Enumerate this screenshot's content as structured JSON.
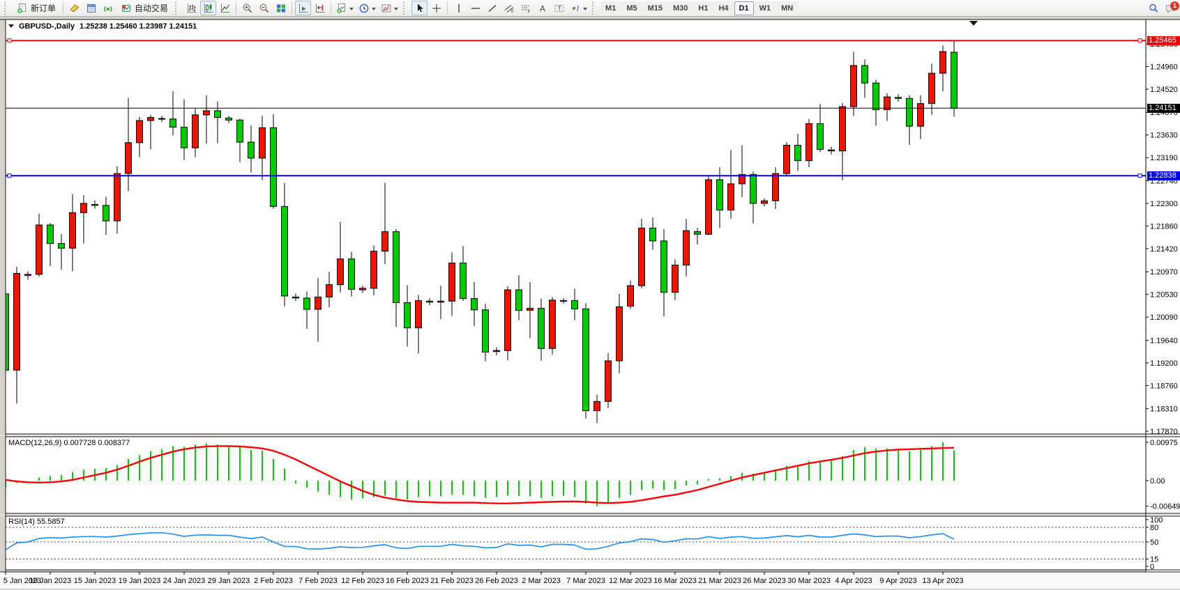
{
  "toolbar": {
    "new_order_label": "新订单",
    "autotrading_label": "自动交易",
    "timeframes": [
      "M1",
      "M5",
      "M15",
      "M30",
      "H1",
      "H4",
      "D1",
      "W1",
      "MN"
    ],
    "active_timeframe": "D1",
    "notification_count": "1"
  },
  "chart": {
    "title": "GBPUSD-,Daily",
    "ohlc_text": "1.25238 1.25460 1.23987 1.24151",
    "macd_label": "MACD(12,26,9) 0.007728 0.008377",
    "rsi_label": "RSI(14) 55.5857",
    "badges": {
      "resistance": "1.25465",
      "current": "1.24151",
      "support": "1.22838"
    }
  },
  "chart_data": {
    "type": "candlestick",
    "symbol": "GBPUSD-",
    "timeframe": "Daily",
    "title_ohlc": {
      "open": 1.25238,
      "high": 1.2546,
      "low": 1.23987,
      "close": 1.24151
    },
    "price_range_visible": [
      1.17818,
      1.25874
    ],
    "grid": false,
    "colors": {
      "bull_body": "#ee1500",
      "bear_body": "#00cc00",
      "outline": "#000000",
      "macd_histogram": "#00cc00",
      "macd_signal": "#ff0000",
      "rsi_line": "#2492f0",
      "resistance_line": "#ff0000",
      "support_line": "#0000ff",
      "current_price_line": "#000000"
    },
    "hlines": [
      {
        "name": "resistance",
        "price": 1.25465,
        "color": "#ff0000",
        "label": "1.25465"
      },
      {
        "name": "support",
        "price": 1.22838,
        "color": "#0000ff",
        "label": "1.22838"
      }
    ],
    "current_price": 1.24151,
    "price_axis_labels": [
      "1.25400",
      "1.24960",
      "1.24520",
      "1.24070",
      "1.23630",
      "1.23190",
      "1.22740",
      "1.22300",
      "1.21860",
      "1.21420",
      "1.20970",
      "1.20530",
      "1.20090",
      "1.19640",
      "1.19200",
      "1.18760",
      "1.18310",
      "1.17870"
    ],
    "x_labels": [
      "5 Jan 2023",
      "10 Jan 2023",
      "15 Jan 2023",
      "19 Jan 2023",
      "24 Jan 2023",
      "29 Jan 2023",
      "2 Feb 2023",
      "7 Feb 2023",
      "12 Feb 2023",
      "16 Feb 2023",
      "21 Feb 2023",
      "26 Feb 2023",
      "2 Mar 2023",
      "7 Mar 2023",
      "12 Mar 2023",
      "16 Mar 2023",
      "21 Mar 2023",
      "26 Mar 2023",
      "30 Mar 2023",
      "4 Apr 2023",
      "9 Apr 2023",
      "13 Apr 2023"
    ],
    "candles_per_x_label": 4,
    "candle_fields": [
      "date",
      "open",
      "high",
      "low",
      "close"
    ],
    "candles": [
      [
        "5 Jan",
        1.2054,
        1.207,
        1.19,
        1.1906
      ],
      [
        "6 Jan",
        1.1906,
        1.2107,
        1.1841,
        1.2094
      ],
      [
        "8 Jan",
        1.209,
        1.2098,
        1.2082,
        1.2092
      ],
      [
        "9 Jan",
        1.2092,
        1.221,
        1.2088,
        1.2188
      ],
      [
        "10 Jan",
        1.2188,
        1.2192,
        1.2108,
        1.2152
      ],
      [
        "11 Jan",
        1.2152,
        1.217,
        1.2101,
        1.2143
      ],
      [
        "12 Jan",
        1.2143,
        1.2248,
        1.2098,
        1.2212
      ],
      [
        "13 Jan",
        1.2212,
        1.2246,
        1.2152,
        1.223
      ],
      [
        "15 Jan",
        1.2228,
        1.2236,
        1.222,
        1.2226
      ],
      [
        "16 Jan",
        1.2226,
        1.2243,
        1.2169,
        1.2196
      ],
      [
        "17 Jan",
        1.2196,
        1.2302,
        1.2171,
        1.2288
      ],
      [
        "18 Jan",
        1.2288,
        1.2435,
        1.2254,
        1.2348
      ],
      [
        "19 Jan",
        1.2348,
        1.2398,
        1.232,
        1.2391
      ],
      [
        "20 Jan",
        1.2391,
        1.2402,
        1.2335,
        1.2397
      ],
      [
        "22 Jan",
        1.2395,
        1.24,
        1.2388,
        1.2394
      ],
      [
        "23 Jan",
        1.2394,
        1.2448,
        1.2362,
        1.2378
      ],
      [
        "24 Jan",
        1.2378,
        1.2432,
        1.2314,
        1.2338
      ],
      [
        "25 Jan",
        1.2338,
        1.2415,
        1.232,
        1.2402
      ],
      [
        "26 Jan",
        1.2402,
        1.244,
        1.2346,
        1.241
      ],
      [
        "27 Jan",
        1.241,
        1.2428,
        1.2347,
        1.2397
      ],
      [
        "29 Jan",
        1.2396,
        1.24,
        1.2386,
        1.2392
      ],
      [
        "30 Jan",
        1.2392,
        1.2395,
        1.231,
        1.2349
      ],
      [
        "31 Jan",
        1.2349,
        1.2382,
        1.229,
        1.2318
      ],
      [
        "1 Feb",
        1.2318,
        1.24,
        1.2275,
        1.2377
      ],
      [
        "2 Feb",
        1.2377,
        1.2403,
        1.222,
        1.2224
      ],
      [
        "3 Feb",
        1.2224,
        1.227,
        1.203,
        1.205
      ],
      [
        "5 Feb",
        1.2048,
        1.2055,
        1.204,
        1.2046
      ],
      [
        "6 Feb",
        1.2046,
        1.2059,
        1.1986,
        1.2024
      ],
      [
        "7 Feb",
        1.2024,
        1.2085,
        1.1961,
        1.2048
      ],
      [
        "8 Feb",
        1.2048,
        1.2097,
        1.2028,
        1.2072
      ],
      [
        "9 Feb",
        1.2072,
        1.2194,
        1.2057,
        1.2122
      ],
      [
        "10 Feb",
        1.2122,
        1.2136,
        1.2049,
        1.2063
      ],
      [
        "12 Feb",
        1.2062,
        1.207,
        1.2056,
        1.2065
      ],
      [
        "13 Feb",
        1.2065,
        1.2148,
        1.2051,
        1.2137
      ],
      [
        "14 Feb",
        1.2137,
        1.227,
        1.2112,
        1.2175
      ],
      [
        "15 Feb",
        1.2175,
        1.218,
        1.199,
        1.2037
      ],
      [
        "16 Feb",
        1.2037,
        1.2071,
        1.1952,
        1.1988
      ],
      [
        "17 Feb",
        1.1988,
        1.2052,
        1.1938,
        1.2041
      ],
      [
        "19 Feb",
        1.204,
        1.2046,
        1.2032,
        1.2038
      ],
      [
        "20 Feb",
        1.2038,
        1.207,
        1.2005,
        1.204
      ],
      [
        "21 Feb",
        1.204,
        1.2135,
        1.2011,
        1.2114
      ],
      [
        "22 Feb",
        1.2114,
        1.2147,
        1.204,
        1.2045
      ],
      [
        "23 Feb",
        1.2045,
        1.2077,
        1.1992,
        1.2023
      ],
      [
        "24 Feb",
        1.2023,
        1.2035,
        1.1923,
        1.1941
      ],
      [
        "26 Feb",
        1.1942,
        1.195,
        1.1935,
        1.1944
      ],
      [
        "27 Feb",
        1.1944,
        1.2069,
        1.1925,
        1.2062
      ],
      [
        "28 Feb",
        1.2062,
        1.209,
        1.2003,
        1.2022
      ],
      [
        "1 Mar",
        1.2022,
        1.2077,
        1.1968,
        1.2026
      ],
      [
        "2 Mar",
        1.2026,
        1.2045,
        1.1924,
        1.1948
      ],
      [
        "3 Mar",
        1.1948,
        1.2048,
        1.1936,
        1.2042
      ],
      [
        "5 Mar",
        1.204,
        1.2046,
        1.2035,
        1.2041
      ],
      [
        "6 Mar",
        1.2041,
        1.2064,
        1.2003,
        1.2025
      ],
      [
        "7 Mar",
        1.2025,
        1.2036,
        1.1812,
        1.1827
      ],
      [
        "8 Mar",
        1.1827,
        1.1858,
        1.1803,
        1.1845
      ],
      [
        "9 Mar",
        1.1845,
        1.1939,
        1.1832,
        1.1924
      ],
      [
        "10 Mar",
        1.1924,
        1.2054,
        1.19,
        1.2029
      ],
      [
        "12 Mar",
        1.203,
        1.208,
        1.2025,
        1.207
      ],
      [
        "13 Mar",
        1.207,
        1.22,
        1.2065,
        1.2182
      ],
      [
        "14 Mar",
        1.2182,
        1.2203,
        1.214,
        1.2157
      ],
      [
        "15 Mar",
        1.2157,
        1.218,
        1.201,
        1.2057
      ],
      [
        "16 Mar",
        1.2057,
        1.2121,
        1.2042,
        1.211
      ],
      [
        "17 Mar",
        1.211,
        1.22,
        1.2088,
        1.2177
      ],
      [
        "19 Mar",
        1.2175,
        1.2182,
        1.215,
        1.217
      ],
      [
        "20 Mar",
        1.217,
        1.2284,
        1.2168,
        1.2276
      ],
      [
        "21 Mar",
        1.2276,
        1.23,
        1.2182,
        1.2217
      ],
      [
        "22 Mar",
        1.2217,
        1.2334,
        1.22,
        1.2268
      ],
      [
        "23 Mar",
        1.2268,
        1.2343,
        1.2242,
        1.2286
      ],
      [
        "24 Mar",
        1.2286,
        1.2292,
        1.2191,
        1.223
      ],
      [
        "26 Mar",
        1.223,
        1.224,
        1.2224,
        1.2235
      ],
      [
        "27 Mar",
        1.2235,
        1.23,
        1.2219,
        1.2288
      ],
      [
        "28 Mar",
        1.2288,
        1.2349,
        1.2284,
        1.2343
      ],
      [
        "29 Mar",
        1.2343,
        1.2365,
        1.2293,
        1.2313
      ],
      [
        "30 Mar",
        1.2313,
        1.2394,
        1.23,
        1.2385
      ],
      [
        "31 Mar",
        1.2385,
        1.2423,
        1.233,
        1.2335
      ],
      [
        "2 Apr",
        1.2334,
        1.234,
        1.2325,
        1.2332
      ],
      [
        "3 Apr",
        1.2332,
        1.2425,
        1.2275,
        1.2418
      ],
      [
        "4 Apr",
        1.2418,
        1.2525,
        1.24,
        1.2498
      ],
      [
        "5 Apr",
        1.2498,
        1.251,
        1.2435,
        1.2464
      ],
      [
        "6 Apr",
        1.2464,
        1.247,
        1.2381,
        1.2412
      ],
      [
        "7 Apr",
        1.2412,
        1.2444,
        1.239,
        1.2437
      ],
      [
        "9 Apr",
        1.2436,
        1.2442,
        1.2428,
        1.2434
      ],
      [
        "10 Apr",
        1.2434,
        1.244,
        1.2344,
        1.238
      ],
      [
        "11 Apr",
        1.238,
        1.244,
        1.2355,
        1.2424
      ],
      [
        "12 Apr",
        1.2424,
        1.2502,
        1.2402,
        1.2483
      ],
      [
        "13 Apr",
        1.2483,
        1.2537,
        1.2448,
        1.2525
      ],
      [
        "14 Apr",
        1.25238,
        1.2546,
        1.23987,
        1.24151
      ]
    ],
    "macd": {
      "label": "MACD(12,26,9)",
      "params": [
        12,
        26,
        9
      ],
      "value": 0.007728,
      "signal_value": 0.008377,
      "axis_labels": [
        "0.00975",
        "0.00",
        "-0.006494"
      ],
      "axis_values": [
        0.00975,
        0.0,
        -0.006494
      ],
      "histogram": [
        -0.0019,
        -0.0006,
        0.0,
        0.0008,
        0.0012,
        0.0014,
        0.0022,
        0.0028,
        0.003,
        0.0032,
        0.004,
        0.0055,
        0.0065,
        0.0075,
        0.008,
        0.0088,
        0.0086,
        0.0092,
        0.0095,
        0.0092,
        0.0088,
        0.0087,
        0.0078,
        0.0076,
        0.0055,
        0.003,
        -0.0008,
        -0.0018,
        -0.0028,
        -0.0036,
        -0.0042,
        -0.0048,
        -0.0045,
        -0.0042,
        -0.0038,
        -0.0045,
        -0.0048,
        -0.0042,
        -0.004,
        -0.004,
        -0.0036,
        -0.0036,
        -0.004,
        -0.0044,
        -0.0042,
        -0.0038,
        -0.0039,
        -0.004,
        -0.0044,
        -0.004,
        -0.0038,
        -0.0042,
        -0.0058,
        -0.006494,
        -0.0058,
        -0.0044,
        -0.0036,
        -0.0024,
        -0.002,
        -0.0024,
        -0.0022,
        -0.0012,
        -0.001,
        0.0004,
        0.0006,
        0.0012,
        0.002,
        0.0018,
        0.002,
        0.0028,
        0.0038,
        0.004,
        0.005,
        0.005,
        0.0052,
        0.0062,
        0.0078,
        0.0085,
        0.0082,
        0.0082,
        0.008,
        0.0075,
        0.0078,
        0.0088,
        0.00975,
        0.007728
      ],
      "signal": [
        0.0002,
        -0.0002,
        -0.0004,
        -0.0005,
        -0.0004,
        -0.0002,
        0.0002,
        0.0008,
        0.0014,
        0.002,
        0.0028,
        0.0038,
        0.0048,
        0.0058,
        0.0066,
        0.0074,
        0.008,
        0.0084,
        0.0087,
        0.0088,
        0.0088,
        0.0087,
        0.0085,
        0.0082,
        0.0076,
        0.0066,
        0.0054,
        0.004,
        0.0026,
        0.0012,
        -0.0002,
        -0.0014,
        -0.0026,
        -0.0036,
        -0.0043,
        -0.0048,
        -0.0052,
        -0.0054,
        -0.0055,
        -0.0056,
        -0.0056,
        -0.0056,
        -0.0056,
        -0.0057,
        -0.0058,
        -0.0058,
        -0.0057,
        -0.0056,
        -0.0055,
        -0.0054,
        -0.0053,
        -0.0053,
        -0.0054,
        -0.0056,
        -0.0057,
        -0.0056,
        -0.0054,
        -0.005,
        -0.0045,
        -0.004,
        -0.0036,
        -0.003,
        -0.0024,
        -0.0016,
        -0.0008,
        0.0,
        0.0008,
        0.0014,
        0.002,
        0.0026,
        0.0032,
        0.0038,
        0.0044,
        0.0049,
        0.0053,
        0.0058,
        0.0064,
        0.007,
        0.0074,
        0.0077,
        0.0079,
        0.008,
        0.0081,
        0.0082,
        0.0083,
        0.008377
      ]
    },
    "rsi": {
      "label": "RSI(14)",
      "period": 14,
      "value": 55.5857,
      "axis_labels": [
        "100",
        "80",
        "50",
        "15",
        "0"
      ],
      "axis_values": [
        100,
        80,
        50,
        15,
        0
      ],
      "levels": [
        80,
        50,
        15
      ],
      "values": [
        34,
        48,
        50,
        57,
        59,
        58,
        60,
        61,
        61,
        60,
        62,
        65,
        67,
        68.5,
        69,
        66,
        61.5,
        64,
        64.5,
        63.5,
        63.5,
        60,
        57,
        60,
        50,
        41,
        40.5,
        36,
        35.5,
        37,
        40,
        38.5,
        38.8,
        42,
        44.5,
        38,
        36.5,
        41,
        41,
        41,
        45,
        42,
        41,
        38,
        38.5,
        46,
        43,
        43.5,
        40,
        45,
        45,
        43.5,
        35,
        36,
        41,
        48,
        50.5,
        56.5,
        55,
        49.5,
        52.5,
        56.5,
        56,
        61,
        57,
        60,
        61,
        57.5,
        58,
        60.5,
        63,
        60.5,
        63.5,
        60,
        60,
        63.5,
        66.5,
        64.5,
        61,
        62,
        62,
        58.5,
        61,
        64.5,
        67,
        55.5857
      ]
    }
  }
}
